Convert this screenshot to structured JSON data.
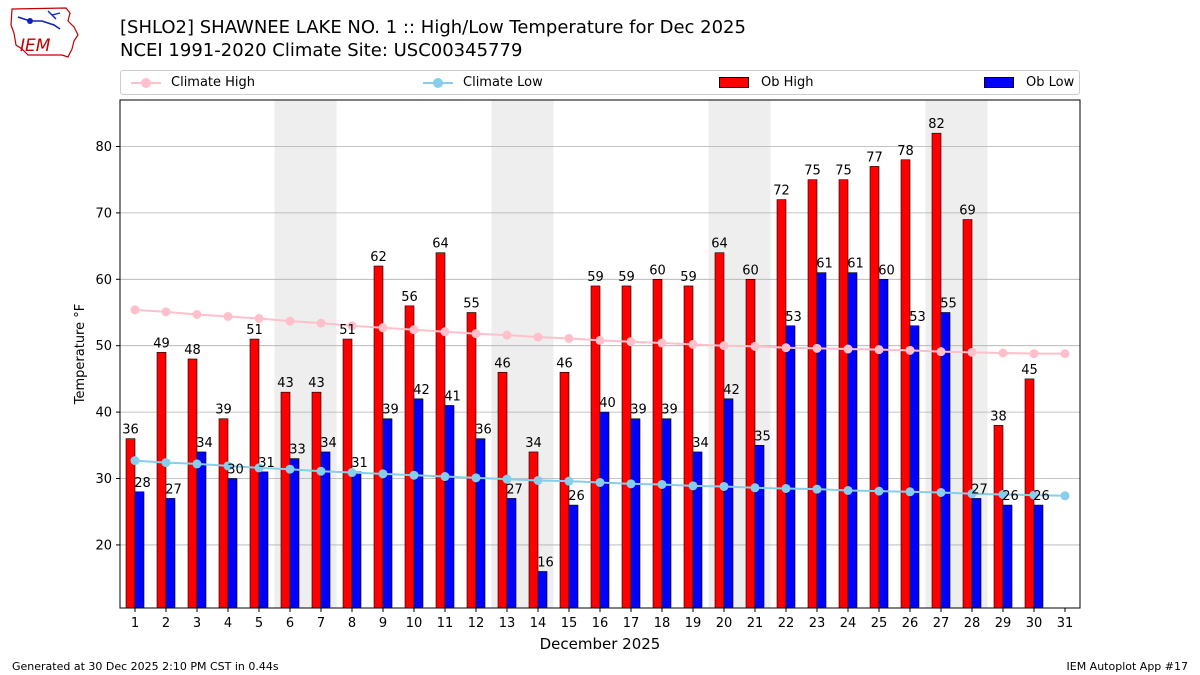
{
  "header": {
    "title_line1": "[SHLO2] SHAWNEE LAKE NO. 1 :: High/Low Temperature for Dec 2025",
    "title_line2": "NCEI 1991-2020 Climate Site: USC00345779",
    "logo_text": "IEM"
  },
  "legend": {
    "climate_high": "Climate High",
    "climate_low": "Climate Low",
    "ob_high": "Ob High",
    "ob_low": "Ob Low"
  },
  "colors": {
    "ob_high": "#ff0000",
    "ob_low": "#0000ff",
    "climate_high": "#ffc0cb",
    "climate_low": "#87ceeb",
    "weekend_shade": "#eeeeee",
    "grid": "#b0b0b0"
  },
  "chart_data": {
    "type": "bar",
    "xlabel": "December 2025",
    "ylabel": "Temperature °F",
    "ylim": [
      10.5,
      87
    ],
    "yticks": [
      20,
      30,
      40,
      50,
      60,
      70,
      80
    ],
    "grid": "horizontal",
    "legend_position": "top",
    "days": [
      1,
      2,
      3,
      4,
      5,
      6,
      7,
      8,
      9,
      10,
      11,
      12,
      13,
      14,
      15,
      16,
      17,
      18,
      19,
      20,
      21,
      22,
      23,
      24,
      25,
      26,
      27,
      28,
      29,
      30,
      31
    ],
    "shaded_days": [
      6,
      7,
      13,
      14,
      20,
      21,
      27,
      28
    ],
    "series": [
      {
        "name": "Ob High",
        "kind": "bar",
        "values": [
          36,
          49,
          48,
          39,
          51,
          43,
          43,
          51,
          62,
          56,
          64,
          55,
          46,
          34,
          46,
          59,
          59,
          60,
          59,
          64,
          60,
          72,
          75,
          75,
          77,
          78,
          82,
          69,
          38,
          45,
          null
        ]
      },
      {
        "name": "Ob Low",
        "kind": "bar",
        "values": [
          28,
          27,
          34,
          30,
          31,
          33,
          34,
          31,
          39,
          42,
          41,
          36,
          27,
          16,
          26,
          40,
          39,
          39,
          34,
          42,
          35,
          53,
          61,
          61,
          60,
          53,
          55,
          27,
          26,
          26,
          null
        ]
      },
      {
        "name": "Climate High",
        "kind": "line",
        "values": [
          55.4,
          55.1,
          54.7,
          54.4,
          54.1,
          53.7,
          53.4,
          53.0,
          52.7,
          52.4,
          52.1,
          51.8,
          51.6,
          51.3,
          51.1,
          50.8,
          50.6,
          50.4,
          50.2,
          50.0,
          49.9,
          49.7,
          49.6,
          49.5,
          49.4,
          49.3,
          49.1,
          49.0,
          48.9,
          48.8,
          48.8
        ]
      },
      {
        "name": "Climate Low",
        "kind": "line",
        "values": [
          32.7,
          32.4,
          32.2,
          31.9,
          31.6,
          31.4,
          31.1,
          30.9,
          30.7,
          30.5,
          30.3,
          30.1,
          29.9,
          29.7,
          29.6,
          29.4,
          29.2,
          29.1,
          28.9,
          28.8,
          28.6,
          28.5,
          28.4,
          28.2,
          28.1,
          28.0,
          27.9,
          27.7,
          27.6,
          27.5,
          27.4
        ]
      }
    ]
  },
  "footer": {
    "left": "Generated at 30 Dec 2025 2:10 PM CST in 0.44s",
    "right": "IEM Autoplot App #17"
  }
}
